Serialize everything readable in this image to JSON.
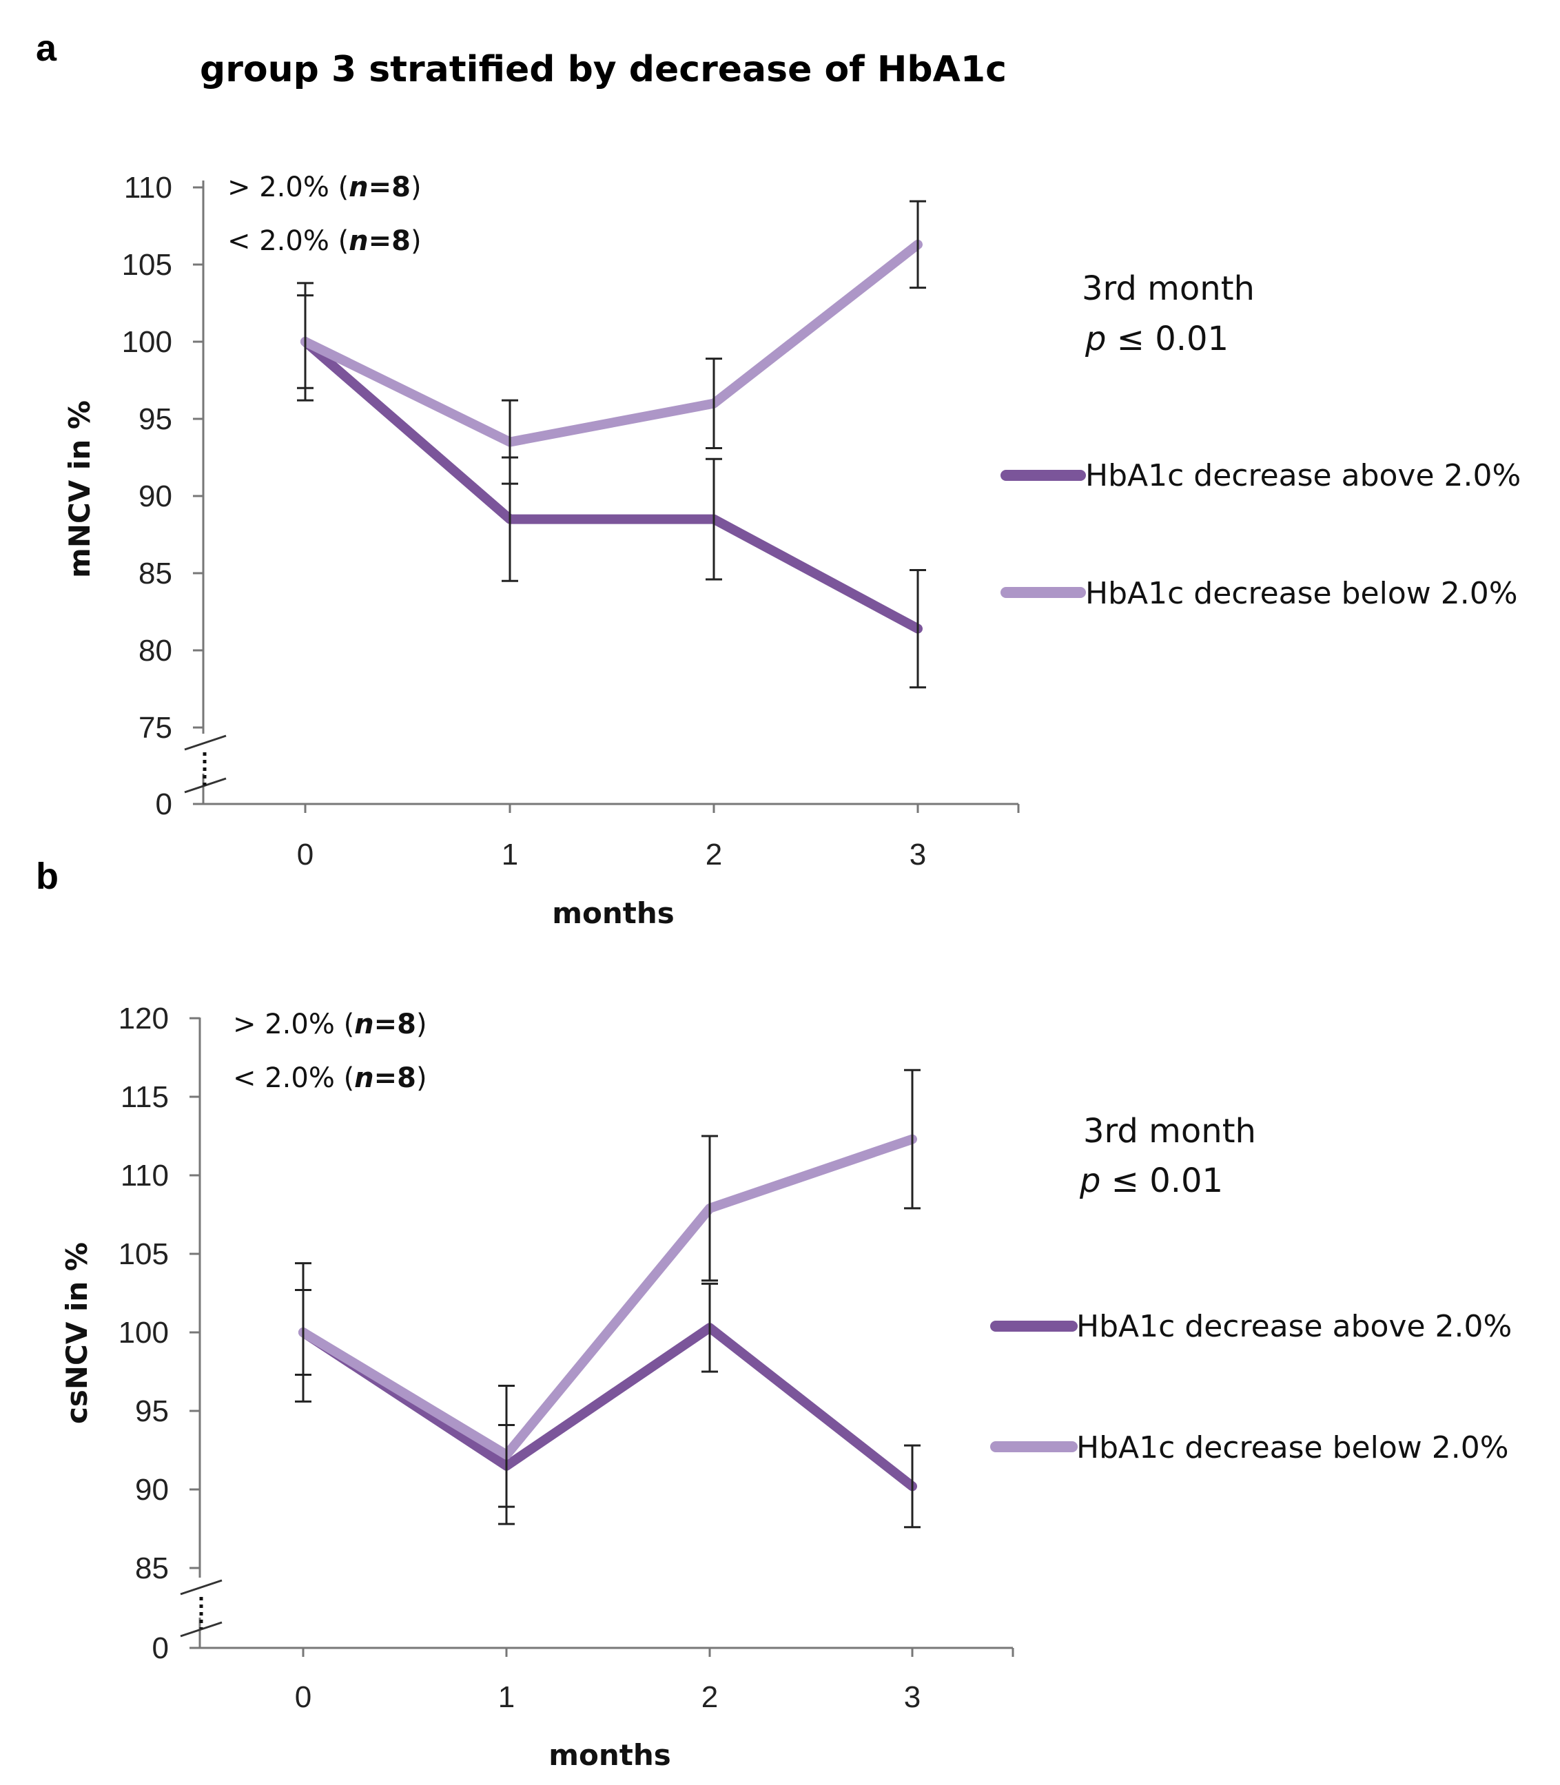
{
  "chart_data": [
    {
      "type": "line",
      "panel": "a",
      "title": "group 3 stratified by decrease of HbA1c",
      "xlabel": "months",
      "ylabel": "mNCV in %",
      "categories": [
        "0",
        "1",
        "2",
        "3"
      ],
      "y_ticks": [
        "0",
        "75",
        "80",
        "85",
        "90",
        "95",
        "100",
        "105",
        "110"
      ],
      "ylim": [
        75,
        110
      ],
      "axis_break": true,
      "series": [
        {
          "name": "HbA1c decrease above 2.0%",
          "color": "#7b559a",
          "values": [
            100,
            88.5,
            88.5,
            81.4
          ],
          "errors": [
            3.0,
            4.0,
            3.9,
            3.8
          ]
        },
        {
          "name": "HbA1c decrease below 2.0%",
          "color": "#ad96c7",
          "values": [
            100,
            93.5,
            96.0,
            106.3
          ],
          "errors": [
            3.8,
            2.7,
            2.9,
            2.8
          ]
        }
      ],
      "annotations": {
        "n_above_prefix": "> 2.0% (",
        "n_below_prefix": "< 2.0% (",
        "n_italic": "n",
        "n_value": "=8",
        "n_suffix": ")",
        "stat_line1": "3rd month",
        "stat_p": "p",
        "stat_value": " ≤ 0.01"
      }
    },
    {
      "type": "line",
      "panel": "b",
      "title": "",
      "xlabel": "months",
      "ylabel": "csNCV in %",
      "categories": [
        "0",
        "1",
        "2",
        "3"
      ],
      "y_ticks": [
        "0",
        "85",
        "90",
        "95",
        "100",
        "105",
        "110",
        "115",
        "120"
      ],
      "ylim": [
        85,
        120
      ],
      "axis_break": true,
      "series": [
        {
          "name": "HbA1c decrease above 2.0%",
          "color": "#7b559a",
          "values": [
            100,
            91.5,
            100.3,
            90.2
          ],
          "errors": [
            2.7,
            2.6,
            2.8,
            2.6
          ]
        },
        {
          "name": "HbA1c decrease below 2.0%",
          "color": "#ad96c7",
          "values": [
            100,
            92.2,
            107.9,
            112.3
          ],
          "errors": [
            4.4,
            4.4,
            4.6,
            4.4
          ]
        }
      ],
      "annotations": {
        "n_above_prefix": "> 2.0% (",
        "n_below_prefix": "< 2.0% (",
        "n_italic": "n",
        "n_value": "=8",
        "n_suffix": ")",
        "stat_line1": "3rd month",
        "stat_p": "p",
        "stat_value": " ≤ 0.01"
      }
    }
  ]
}
